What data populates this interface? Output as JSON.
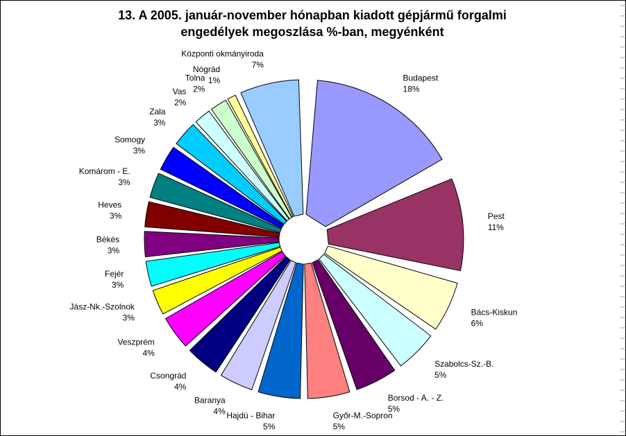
{
  "chart_data": {
    "type": "pie",
    "title_lines": [
      "13. A  2005. január-november hónapban kiadott gépjármű forgalmi",
      "engedélyek megoszlása %-ban, megyénként"
    ],
    "slices": [
      {
        "name": "Budapest",
        "label": "18%",
        "value": 18,
        "color": "#9999ff"
      },
      {
        "name": "Pest",
        "label": "11%",
        "value": 11,
        "color": "#993366"
      },
      {
        "name": "Bács-Kiskun",
        "label": "6%",
        "value": 6,
        "color": "#ffffcc"
      },
      {
        "name": "Szabolcs-Sz.-B.",
        "label": "5%",
        "value": 5,
        "color": "#ccffff"
      },
      {
        "name": "Borsod - A. - Z.",
        "label": "5%",
        "value": 5,
        "color": "#660066"
      },
      {
        "name": "Győr-M.-Sopron",
        "label": "5%",
        "value": 5,
        "color": "#ff8080"
      },
      {
        "name": "Hajdú - Bihar",
        "label": "5%",
        "value": 5,
        "color": "#0066cc"
      },
      {
        "name": "Baranya",
        "label": "4%",
        "value": 4,
        "color": "#ccccff"
      },
      {
        "name": "Csongrád",
        "label": "4%",
        "value": 4,
        "color": "#000080"
      },
      {
        "name": "Veszprém",
        "label": "4%",
        "value": 4,
        "color": "#ff00ff"
      },
      {
        "name": "Jász-Nk.-Szolnok",
        "label": "3%",
        "value": 3,
        "color": "#ffff00"
      },
      {
        "name": "Fejér",
        "label": "3%",
        "value": 3,
        "color": "#00ffff"
      },
      {
        "name": "Békés",
        "label": "3%",
        "value": 3,
        "color": "#800080"
      },
      {
        "name": "Heves",
        "label": "3%",
        "value": 3,
        "color": "#800000"
      },
      {
        "name": "Komárom - E.",
        "label": "3%",
        "value": 3,
        "color": "#008080"
      },
      {
        "name": "Somogy",
        "label": "3%",
        "value": 3,
        "color": "#0000ff"
      },
      {
        "name": "Zala",
        "label": "3%",
        "value": 3,
        "color": "#00ccff"
      },
      {
        "name": "Vas",
        "label": "2%",
        "value": 2,
        "color": "#ccffff"
      },
      {
        "name": "Tolna",
        "label": "2%",
        "value": 2,
        "color": "#ccffcc"
      },
      {
        "name": "Nógrád",
        "label": "1%",
        "value": 1,
        "color": "#ffff99"
      },
      {
        "name": "Központi okmányiroda",
        "label": "7%",
        "value": 7,
        "color": "#99ccff"
      }
    ],
    "legend": "none",
    "grid": false
  }
}
